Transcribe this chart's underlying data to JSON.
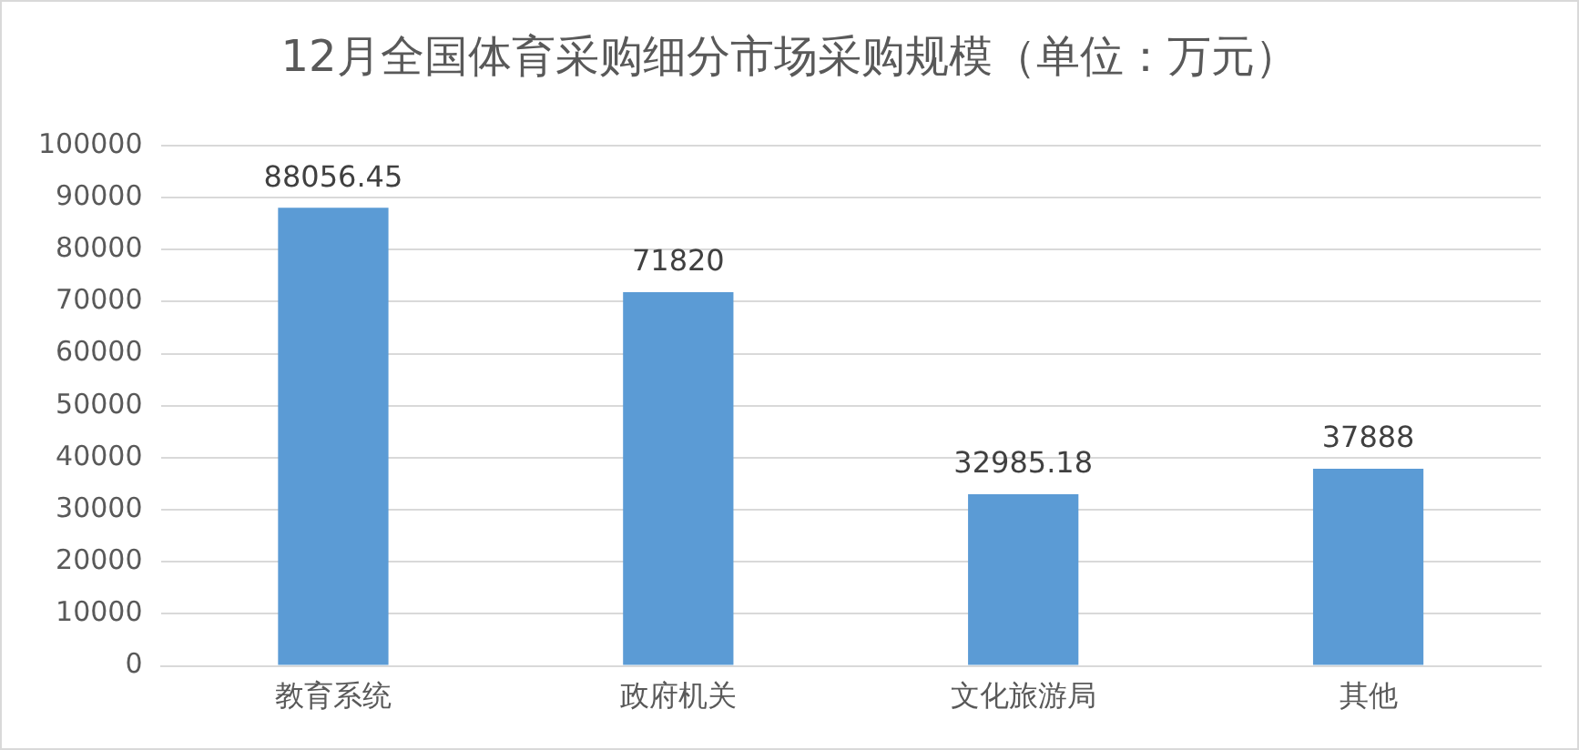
{
  "chart_data": {
    "type": "bar",
    "title": "12月全国体育采购细分市场采购规模（单位：万元）",
    "categories": [
      "教育系统",
      "政府机关",
      "文化旅游局",
      "其他"
    ],
    "values": [
      88056.45,
      71820,
      32985.18,
      37888
    ],
    "color": "#5b9bd5",
    "ylim": [
      0,
      100000
    ],
    "yticks": [
      0,
      10000,
      20000,
      30000,
      40000,
      50000,
      60000,
      70000,
      80000,
      90000,
      100000
    ],
    "grid": "y",
    "legend": false,
    "data_labels": true
  }
}
